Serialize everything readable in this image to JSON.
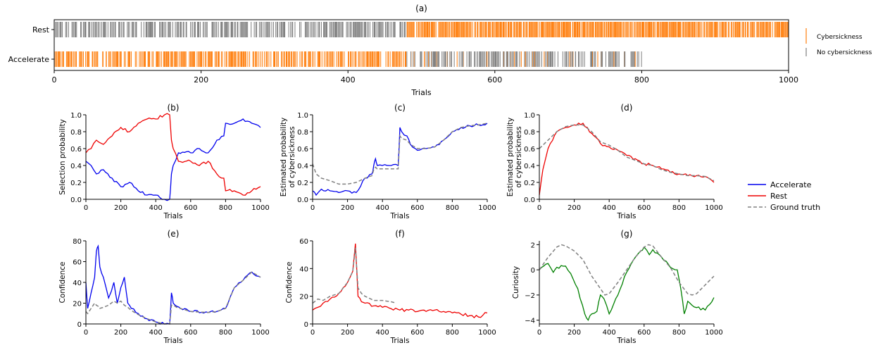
{
  "colors": {
    "accelerate": "#0000ee",
    "rest": "#ee0000",
    "ground_truth": "#808080",
    "curiosity": "#008000",
    "cybersickness": "#ff7f0e",
    "no_cybersickness": "#7f7f7f"
  },
  "legend_top": {
    "cyber": "Cybersickness",
    "nocyber": "No cybersickness"
  },
  "legend_main": {
    "accelerate": "Accelerate",
    "rest": "Rest",
    "ground_truth": "Ground truth"
  },
  "chart_data": [
    {
      "panel": "(a)",
      "type": "scatter",
      "xlabel": "Trials",
      "xlim": [
        0,
        1000
      ],
      "x_ticks": [
        "0",
        "200",
        "400",
        "600",
        "800",
        "1000"
      ],
      "categories": [
        "Rest",
        "Accelerate"
      ],
      "series": [
        {
          "name": "Cybersickness",
          "segments": [
            {
              "row": "Rest",
              "from": 480,
              "to": 1000,
              "density": 0.85
            },
            {
              "row": "Accelerate",
              "from": 0,
              "to": 480,
              "density": 0.6
            },
            {
              "row": "Accelerate",
              "from": 480,
              "to": 800,
              "density": 0.12
            }
          ]
        },
        {
          "name": "No cybersickness",
          "segments": [
            {
              "row": "Rest",
              "from": 0,
              "to": 480,
              "density": 0.6
            },
            {
              "row": "Accelerate",
              "from": 480,
              "to": 800,
              "density": 0.5
            }
          ]
        }
      ]
    },
    {
      "panel": "(b)",
      "type": "line",
      "xlabel": "Trials",
      "ylabel": "Selection probability",
      "xlim": [
        0,
        1000
      ],
      "ylim": [
        0,
        1
      ],
      "x_ticks": [
        "0",
        "200",
        "400",
        "600",
        "800",
        "1000"
      ],
      "y_ticks": [
        "0.0",
        "0.2",
        "0.4",
        "0.6",
        "0.8",
        "1.0"
      ],
      "series": [
        {
          "name": "Accelerate",
          "x": [
            0,
            30,
            60,
            100,
            150,
            200,
            250,
            300,
            350,
            400,
            450,
            480,
            490,
            500,
            530,
            600,
            650,
            700,
            750,
            790,
            800,
            850,
            900,
            950,
            1000
          ],
          "y": [
            0.45,
            0.4,
            0.3,
            0.35,
            0.25,
            0.15,
            0.2,
            0.1,
            0.05,
            0.05,
            0.0,
            0.0,
            0.3,
            0.4,
            0.55,
            0.55,
            0.6,
            0.55,
            0.7,
            0.75,
            0.9,
            0.9,
            0.95,
            0.9,
            0.85
          ]
        },
        {
          "name": "Rest",
          "x": [
            0,
            30,
            60,
            100,
            150,
            200,
            250,
            300,
            350,
            400,
            450,
            480,
            490,
            500,
            530,
            600,
            650,
            700,
            750,
            790,
            800,
            850,
            900,
            950,
            1000
          ],
          "y": [
            0.55,
            0.6,
            0.7,
            0.65,
            0.75,
            0.85,
            0.8,
            0.9,
            0.95,
            0.95,
            1.0,
            1.0,
            0.7,
            0.6,
            0.45,
            0.45,
            0.4,
            0.45,
            0.3,
            0.25,
            0.1,
            0.1,
            0.05,
            0.1,
            0.15
          ]
        }
      ]
    },
    {
      "panel": "(c)",
      "type": "line",
      "xlabel": "Trials",
      "ylabel": "Estimated probability of cybersickness",
      "xlim": [
        0,
        1000
      ],
      "ylim": [
        0,
        1
      ],
      "x_ticks": [
        "0",
        "200",
        "400",
        "600",
        "800",
        "1000"
      ],
      "y_ticks": [
        "0.0",
        "0.2",
        "0.4",
        "0.6",
        "0.8",
        "1.0"
      ],
      "series": [
        {
          "name": "Accelerate",
          "x": [
            0,
            20,
            50,
            100,
            150,
            200,
            250,
            300,
            340,
            350,
            360,
            370,
            400,
            450,
            490,
            500,
            510,
            540,
            560,
            600,
            650,
            700,
            750,
            800,
            850,
            900,
            950,
            1000
          ],
          "y": [
            0.1,
            0.05,
            0.12,
            0.1,
            0.08,
            0.1,
            0.08,
            0.25,
            0.3,
            0.4,
            0.48,
            0.4,
            0.4,
            0.4,
            0.4,
            0.85,
            0.8,
            0.75,
            0.65,
            0.58,
            0.6,
            0.62,
            0.7,
            0.8,
            0.85,
            0.87,
            0.88,
            0.9
          ]
        },
        {
          "name": "Ground truth",
          "x": [
            0,
            20,
            50,
            100,
            150,
            200,
            250,
            300,
            340,
            350,
            360,
            370,
            400,
            450,
            490,
            500,
            510,
            540,
            560,
            600,
            650,
            700,
            750,
            800,
            850,
            900,
            950,
            1000
          ],
          "y": [
            0.42,
            0.3,
            0.25,
            0.22,
            0.18,
            0.18,
            0.2,
            0.25,
            0.28,
            0.35,
            0.38,
            0.36,
            0.36,
            0.36,
            0.36,
            0.75,
            0.72,
            0.7,
            0.65,
            0.6,
            0.6,
            0.62,
            0.7,
            0.8,
            0.85,
            0.87,
            0.88,
            0.9
          ]
        }
      ]
    },
    {
      "panel": "(d)",
      "type": "line",
      "xlabel": "Trials",
      "ylabel": "Estimated probability of cybersickness",
      "xlim": [
        0,
        1000
      ],
      "ylim": [
        0,
        1
      ],
      "x_ticks": [
        "0",
        "200",
        "400",
        "600",
        "800",
        "1000"
      ],
      "y_ticks": [
        "0.0",
        "0.2",
        "0.4",
        "0.6",
        "0.8",
        "1.0"
      ],
      "series": [
        {
          "name": "Rest",
          "x": [
            0,
            20,
            50,
            100,
            150,
            200,
            250,
            300,
            350,
            400,
            450,
            500,
            550,
            600,
            650,
            700,
            750,
            800,
            850,
            900,
            950,
            1000
          ],
          "y": [
            0.05,
            0.35,
            0.6,
            0.8,
            0.85,
            0.88,
            0.9,
            0.78,
            0.66,
            0.62,
            0.58,
            0.52,
            0.48,
            0.42,
            0.4,
            0.36,
            0.32,
            0.3,
            0.28,
            0.28,
            0.27,
            0.2
          ]
        },
        {
          "name": "Ground truth",
          "x": [
            0,
            20,
            50,
            100,
            150,
            200,
            250,
            300,
            350,
            400,
            450,
            500,
            550,
            600,
            650,
            700,
            750,
            800,
            850,
            900,
            950,
            1000
          ],
          "y": [
            0.6,
            0.64,
            0.7,
            0.8,
            0.86,
            0.88,
            0.88,
            0.8,
            0.68,
            0.64,
            0.58,
            0.5,
            0.46,
            0.42,
            0.4,
            0.35,
            0.32,
            0.3,
            0.28,
            0.28,
            0.27,
            0.22
          ]
        }
      ]
    },
    {
      "panel": "(e)",
      "type": "line",
      "xlabel": "Trials",
      "ylabel": "Confidence",
      "xlim": [
        0,
        1000
      ],
      "ylim": [
        0,
        80
      ],
      "x_ticks": [
        "0",
        "200",
        "400",
        "600",
        "800",
        "1000"
      ],
      "y_ticks": [
        "0",
        "20",
        "40",
        "60",
        "80"
      ],
      "series": [
        {
          "name": "Accelerate",
          "x": [
            0,
            10,
            30,
            50,
            60,
            70,
            80,
            100,
            130,
            160,
            180,
            200,
            220,
            240,
            260,
            300,
            350,
            400,
            450,
            480,
            490,
            500,
            520,
            600,
            700,
            750,
            800,
            850,
            900,
            950,
            1000
          ],
          "y": [
            40,
            15,
            30,
            45,
            70,
            75,
            55,
            45,
            25,
            40,
            20,
            35,
            45,
            20,
            15,
            10,
            5,
            2,
            0,
            0,
            30,
            20,
            17,
            12,
            11,
            12,
            15,
            35,
            42,
            50,
            45
          ]
        },
        {
          "name": "Ground truth",
          "x": [
            0,
            10,
            30,
            50,
            60,
            70,
            80,
            100,
            130,
            160,
            180,
            200,
            220,
            240,
            260,
            300,
            350,
            400,
            450,
            480,
            490,
            500,
            520,
            600,
            700,
            750,
            800,
            850,
            900,
            950,
            1000
          ],
          "y": [
            12,
            10,
            15,
            20,
            18,
            17,
            15,
            16,
            18,
            22,
            20,
            22,
            18,
            16,
            13,
            9,
            5,
            2,
            0,
            0,
            18,
            18,
            16,
            12,
            11,
            12,
            15,
            35,
            42,
            50,
            45
          ]
        }
      ]
    },
    {
      "panel": "(f)",
      "type": "line",
      "xlabel": "Trials",
      "ylabel": "Confidence",
      "xlim": [
        0,
        1000
      ],
      "ylim": [
        0,
        60
      ],
      "x_ticks": [
        "0",
        "200",
        "400",
        "600",
        "800",
        "1000"
      ],
      "y_ticks": [
        "0",
        "20",
        "40",
        "60"
      ],
      "series": [
        {
          "name": "Rest",
          "x": [
            0,
            30,
            60,
            100,
            150,
            200,
            230,
            245,
            260,
            280,
            300,
            350,
            400,
            450,
            500,
            550,
            600,
            650,
            700,
            750,
            800,
            850,
            900,
            950,
            1000
          ],
          "y": [
            10,
            12,
            15,
            18,
            22,
            30,
            38,
            58,
            20,
            16,
            15,
            13,
            12,
            11,
            10,
            10,
            9,
            9,
            10,
            9,
            8,
            7,
            6,
            5,
            8
          ]
        },
        {
          "name": "Ground truth",
          "x": [
            0,
            30,
            60,
            100,
            150,
            200,
            230,
            245,
            260,
            280,
            300,
            350,
            400,
            450,
            480
          ],
          "y": [
            15,
            18,
            17,
            20,
            22,
            30,
            38,
            55,
            26,
            22,
            20,
            17,
            17,
            16,
            15
          ]
        }
      ]
    },
    {
      "panel": "(g)",
      "type": "line",
      "xlabel": "Trials",
      "ylabel": "Curiosity",
      "xlim": [
        0,
        1000
      ],
      "ylim": [
        -4.3,
        2.3
      ],
      "x_ticks": [
        "0",
        "200",
        "400",
        "600",
        "800",
        "1000"
      ],
      "y_ticks": [
        "−4",
        "−2",
        "0",
        "2"
      ],
      "series": [
        {
          "name": "Curiosity",
          "x": [
            0,
            50,
            80,
            100,
            150,
            180,
            220,
            260,
            280,
            300,
            330,
            350,
            370,
            400,
            450,
            500,
            550,
            580,
            600,
            630,
            650,
            700,
            750,
            790,
            810,
            830,
            850,
            900,
            950,
            1000
          ],
          "y": [
            0.0,
            0.5,
            -0.2,
            0.2,
            0.3,
            -0.3,
            -1.5,
            -3.5,
            -4.0,
            -3.5,
            -3.3,
            -2.0,
            -2.3,
            -3.5,
            -2.0,
            -0.2,
            1.0,
            1.5,
            1.8,
            1.2,
            1.6,
            1.0,
            0.2,
            0.0,
            -1.5,
            -3.5,
            -2.5,
            -3.0,
            -3.2,
            -2.2
          ]
        },
        {
          "name": "Ground truth",
          "x": [
            0,
            50,
            100,
            125,
            150,
            200,
            250,
            300,
            375,
            400,
            450,
            500,
            550,
            600,
            625,
            650,
            700,
            750,
            800,
            850,
            875,
            900,
            950,
            1000
          ],
          "y": [
            0.0,
            1.0,
            1.8,
            2.0,
            1.9,
            1.5,
            0.8,
            -0.5,
            -2.0,
            -1.9,
            -1.0,
            0.0,
            1.0,
            1.8,
            2.0,
            1.9,
            1.0,
            0.2,
            -1.0,
            -1.9,
            -2.0,
            -1.9,
            -1.2,
            -0.5
          ]
        }
      ]
    }
  ]
}
